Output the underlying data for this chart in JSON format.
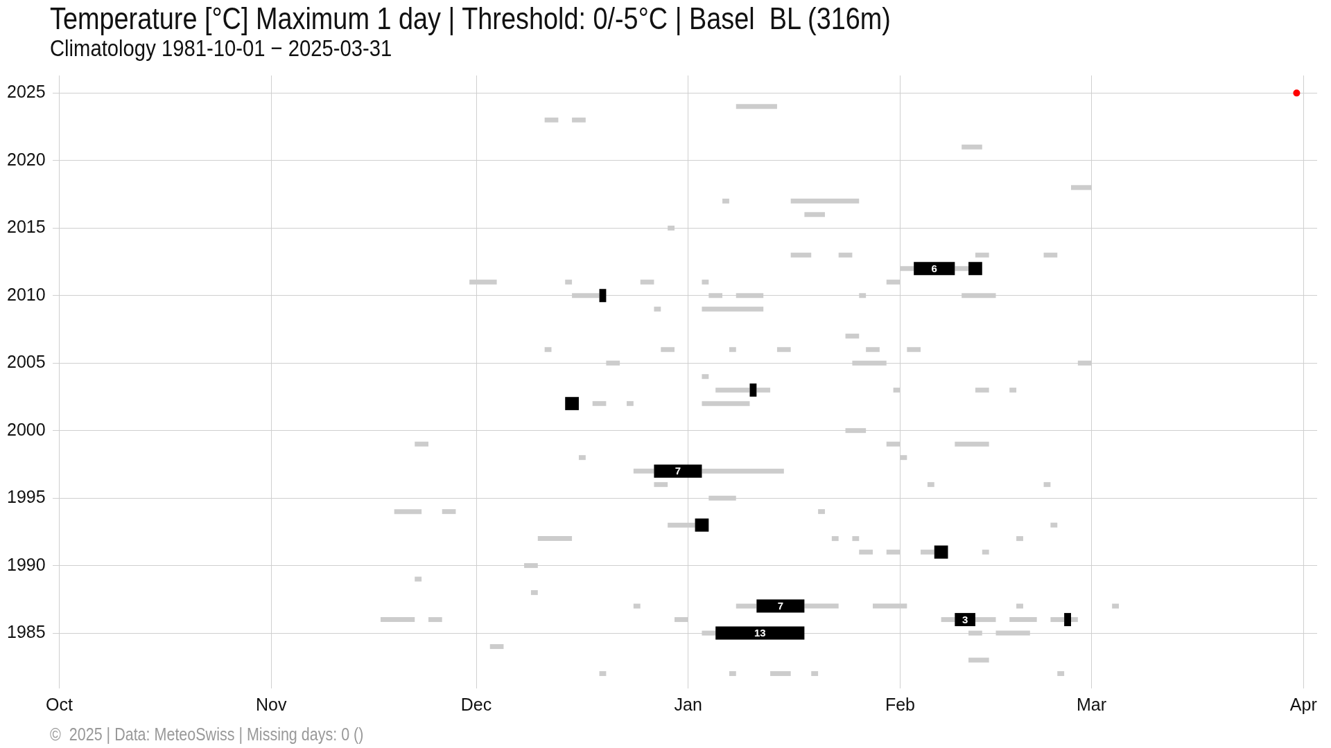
{
  "chart_data": {
    "type": "line",
    "title": "Temperature [°C] Maximum 1 day | Threshold: 0/-5°C | Basel  BL (316m)",
    "subtitle": "Climatology 1981-10-01 − 2025-03-31",
    "xlim": [
      "2000-09-30",
      "2001-04-03"
    ],
    "ylim": [
      1980.9,
      2026.3
    ],
    "xticks": [
      {
        "value": "2000-10-01",
        "label": "Oct"
      },
      {
        "value": "2000-11-01",
        "label": "Nov"
      },
      {
        "value": "2000-12-01",
        "label": "Dec"
      },
      {
        "value": "2001-01-01",
        "label": "Jan"
      },
      {
        "value": "2001-02-01",
        "label": "Feb"
      },
      {
        "value": "2001-03-01",
        "label": "Mar"
      },
      {
        "value": "2001-04-01",
        "label": "Apr"
      }
    ],
    "yticks": [
      1985,
      1990,
      1995,
      2000,
      2005,
      2010,
      2015,
      2020,
      2025
    ],
    "grid": true,
    "legend": false,
    "marker": "none",
    "annotations": [
      "©  2025 | Data: MeteoSwiss | Missing days: 0 ()",
      {
        "text": "6",
        "x": "2001-02-06T00:00",
        "y": 2012
      },
      {
        "text": "7",
        "x": "2000-12-30T12:00",
        "y": 1997
      },
      {
        "text": "7",
        "x": "2001-01-14T12:00",
        "y": 1987
      },
      {
        "text": "13",
        "x": "2001-01-11T12:00",
        "y": 1985
      },
      {
        "text": "3",
        "x": "2001-02-10T12:00",
        "y": 1986
      }
    ],
    "series": [
      {
        "color": "#cccccc",
        "x": [
          "2001-01-08",
          "2001-01-14"
        ],
        "values": [
          2024,
          2024
        ]
      },
      {
        "color": "#cccccc",
        "x": [
          "2000-12-11",
          "2000-12-13"
        ],
        "values": [
          2023,
          2023
        ]
      },
      {
        "color": "#cccccc",
        "x": [
          "2000-12-15",
          "2000-12-17"
        ],
        "values": [
          2023,
          2023
        ]
      },
      {
        "color": "#cccccc",
        "x": [
          "2001-02-10",
          "2001-02-13"
        ],
        "values": [
          2021,
          2021
        ]
      },
      {
        "color": "#cccccc",
        "x": [
          "2001-02-26",
          "2001-03-01"
        ],
        "values": [
          2018,
          2018
        ]
      },
      {
        "color": "#cccccc",
        "x": [
          "2001-01-06",
          "2001-01-07"
        ],
        "values": [
          2017,
          2017
        ]
      },
      {
        "color": "#cccccc",
        "x": [
          "2001-01-16",
          "2001-01-26"
        ],
        "values": [
          2017,
          2017
        ]
      },
      {
        "color": "#cccccc",
        "x": [
          "2001-01-18",
          "2001-01-21"
        ],
        "values": [
          2016,
          2016
        ]
      },
      {
        "color": "#cccccc",
        "x": [
          "2000-12-29",
          "2000-12-30"
        ],
        "values": [
          2015,
          2015
        ]
      },
      {
        "color": "#cccccc",
        "x": [
          "2001-01-16",
          "2001-01-19"
        ],
        "values": [
          2013,
          2013
        ]
      },
      {
        "color": "#cccccc",
        "x": [
          "2001-01-23",
          "2001-01-25"
        ],
        "values": [
          2013,
          2013
        ]
      },
      {
        "color": "#cccccc",
        "x": [
          "2001-02-12",
          "2001-02-14"
        ],
        "values": [
          2013,
          2013
        ]
      },
      {
        "color": "#cccccc",
        "x": [
          "2001-02-22",
          "2001-02-24"
        ],
        "values": [
          2013,
          2013
        ]
      },
      {
        "color": "#cccccc",
        "x": [
          "2001-02-01",
          "2001-02-03"
        ],
        "values": [
          2012,
          2012
        ]
      },
      {
        "color": "#cccccc",
        "x": [
          "2001-02-09",
          "2001-02-11"
        ],
        "values": [
          2012,
          2012
        ]
      },
      {
        "color": "#cccccc",
        "x": [
          "2000-11-30",
          "2000-12-04"
        ],
        "values": [
          2011,
          2011
        ]
      },
      {
        "color": "#cccccc",
        "x": [
          "2000-12-14",
          "2000-12-15"
        ],
        "values": [
          2011,
          2011
        ]
      },
      {
        "color": "#cccccc",
        "x": [
          "2000-12-25",
          "2000-12-27"
        ],
        "values": [
          2011,
          2011
        ]
      },
      {
        "color": "#cccccc",
        "x": [
          "2001-01-03",
          "2001-01-04"
        ],
        "values": [
          2011,
          2011
        ]
      },
      {
        "color": "#cccccc",
        "x": [
          "2001-01-30",
          "2001-02-01"
        ],
        "values": [
          2011,
          2011
        ]
      },
      {
        "color": "#cccccc",
        "x": [
          "2000-12-15",
          "2000-12-19"
        ],
        "values": [
          2010,
          2010
        ]
      },
      {
        "color": "#cccccc",
        "x": [
          "2001-01-04",
          "2001-01-06"
        ],
        "values": [
          2010,
          2010
        ]
      },
      {
        "color": "#cccccc",
        "x": [
          "2001-01-08",
          "2001-01-12"
        ],
        "values": [
          2010,
          2010
        ]
      },
      {
        "color": "#cccccc",
        "x": [
          "2001-01-26",
          "2001-01-27"
        ],
        "values": [
          2010,
          2010
        ]
      },
      {
        "color": "#cccccc",
        "x": [
          "2001-02-10",
          "2001-02-15"
        ],
        "values": [
          2010,
          2010
        ]
      },
      {
        "color": "#cccccc",
        "x": [
          "2000-12-27",
          "2000-12-28"
        ],
        "values": [
          2009,
          2009
        ]
      },
      {
        "color": "#cccccc",
        "x": [
          "2001-01-03",
          "2001-01-12"
        ],
        "values": [
          2009,
          2009
        ]
      },
      {
        "color": "#cccccc",
        "x": [
          "2001-01-24",
          "2001-01-26"
        ],
        "values": [
          2007,
          2007
        ]
      },
      {
        "color": "#cccccc",
        "x": [
          "2000-12-11",
          "2000-12-12"
        ],
        "values": [
          2006,
          2006
        ]
      },
      {
        "color": "#cccccc",
        "x": [
          "2000-12-28",
          "2000-12-30"
        ],
        "values": [
          2006,
          2006
        ]
      },
      {
        "color": "#cccccc",
        "x": [
          "2001-01-07",
          "2001-01-08"
        ],
        "values": [
          2006,
          2006
        ]
      },
      {
        "color": "#cccccc",
        "x": [
          "2001-01-14",
          "2001-01-16"
        ],
        "values": [
          2006,
          2006
        ]
      },
      {
        "color": "#cccccc",
        "x": [
          "2001-01-27",
          "2001-01-29"
        ],
        "values": [
          2006,
          2006
        ]
      },
      {
        "color": "#cccccc",
        "x": [
          "2001-02-02",
          "2001-02-04"
        ],
        "values": [
          2006,
          2006
        ]
      },
      {
        "color": "#cccccc",
        "x": [
          "2000-12-20",
          "2000-12-22"
        ],
        "values": [
          2005,
          2005
        ]
      },
      {
        "color": "#cccccc",
        "x": [
          "2001-01-25",
          "2001-01-30"
        ],
        "values": [
          2005,
          2005
        ]
      },
      {
        "color": "#cccccc",
        "x": [
          "2001-02-27",
          "2001-03-01"
        ],
        "values": [
          2005,
          2005
        ]
      },
      {
        "color": "#cccccc",
        "x": [
          "2001-01-03",
          "2001-01-04"
        ],
        "values": [
          2004,
          2004
        ]
      },
      {
        "color": "#cccccc",
        "x": [
          "2001-01-05",
          "2001-01-10"
        ],
        "values": [
          2003,
          2003
        ]
      },
      {
        "color": "#cccccc",
        "x": [
          "2001-01-11",
          "2001-01-13"
        ],
        "values": [
          2003,
          2003
        ]
      },
      {
        "color": "#cccccc",
        "x": [
          "2001-01-31",
          "2001-02-01"
        ],
        "values": [
          2003,
          2003
        ]
      },
      {
        "color": "#cccccc",
        "x": [
          "2001-02-12",
          "2001-02-14"
        ],
        "values": [
          2003,
          2003
        ]
      },
      {
        "color": "#cccccc",
        "x": [
          "2001-02-17",
          "2001-02-18"
        ],
        "values": [
          2003,
          2003
        ]
      },
      {
        "color": "#cccccc",
        "x": [
          "2000-12-18",
          "2000-12-20"
        ],
        "values": [
          2002,
          2002
        ]
      },
      {
        "color": "#cccccc",
        "x": [
          "2000-12-23",
          "2000-12-24"
        ],
        "values": [
          2002,
          2002
        ]
      },
      {
        "color": "#cccccc",
        "x": [
          "2001-01-03",
          "2001-01-10"
        ],
        "values": [
          2002,
          2002
        ]
      },
      {
        "color": "#cccccc",
        "x": [
          "2001-01-24",
          "2001-01-27"
        ],
        "values": [
          2000,
          2000
        ]
      },
      {
        "color": "#cccccc",
        "x": [
          "2000-11-22",
          "2000-11-24"
        ],
        "values": [
          1999,
          1999
        ]
      },
      {
        "color": "#cccccc",
        "x": [
          "2001-01-30",
          "2001-02-01"
        ],
        "values": [
          1999,
          1999
        ]
      },
      {
        "color": "#cccccc",
        "x": [
          "2001-02-09",
          "2001-02-14"
        ],
        "values": [
          1999,
          1999
        ]
      },
      {
        "color": "#cccccc",
        "x": [
          "2000-12-16",
          "2000-12-17"
        ],
        "values": [
          1998,
          1998
        ]
      },
      {
        "color": "#cccccc",
        "x": [
          "2001-02-01",
          "2001-02-02"
        ],
        "values": [
          1998,
          1998
        ]
      },
      {
        "color": "#cccccc",
        "x": [
          "2000-12-24",
          "2000-12-27"
        ],
        "values": [
          1997,
          1997
        ]
      },
      {
        "color": "#cccccc",
        "x": [
          "2001-01-03",
          "2001-01-15"
        ],
        "values": [
          1997,
          1997
        ]
      },
      {
        "color": "#cccccc",
        "x": [
          "2000-12-27",
          "2000-12-29"
        ],
        "values": [
          1996,
          1996
        ]
      },
      {
        "color": "#cccccc",
        "x": [
          "2001-02-05",
          "2001-02-06"
        ],
        "values": [
          1996,
          1996
        ]
      },
      {
        "color": "#cccccc",
        "x": [
          "2001-02-22",
          "2001-02-23"
        ],
        "values": [
          1996,
          1996
        ]
      },
      {
        "color": "#cccccc",
        "x": [
          "2001-01-04",
          "2001-01-08"
        ],
        "values": [
          1995,
          1995
        ]
      },
      {
        "color": "#cccccc",
        "x": [
          "2000-11-19",
          "2000-11-23"
        ],
        "values": [
          1994,
          1994
        ]
      },
      {
        "color": "#cccccc",
        "x": [
          "2000-11-26",
          "2000-11-28"
        ],
        "values": [
          1994,
          1994
        ]
      },
      {
        "color": "#cccccc",
        "x": [
          "2001-01-20",
          "2001-01-21"
        ],
        "values": [
          1994,
          1994
        ]
      },
      {
        "color": "#cccccc",
        "x": [
          "2000-12-29",
          "2001-01-02"
        ],
        "values": [
          1993,
          1993
        ]
      },
      {
        "color": "#cccccc",
        "x": [
          "2001-02-23",
          "2001-02-24"
        ],
        "values": [
          1993,
          1993
        ]
      },
      {
        "color": "#cccccc",
        "x": [
          "2000-12-10",
          "2000-12-15"
        ],
        "values": [
          1992,
          1992
        ]
      },
      {
        "color": "#cccccc",
        "x": [
          "2001-01-22",
          "2001-01-23"
        ],
        "values": [
          1992,
          1992
        ]
      },
      {
        "color": "#cccccc",
        "x": [
          "2001-01-25",
          "2001-01-26"
        ],
        "values": [
          1992,
          1992
        ]
      },
      {
        "color": "#cccccc",
        "x": [
          "2001-02-18",
          "2001-02-19"
        ],
        "values": [
          1992,
          1992
        ]
      },
      {
        "color": "#cccccc",
        "x": [
          "2001-01-26",
          "2001-01-28"
        ],
        "values": [
          1991,
          1991
        ]
      },
      {
        "color": "#cccccc",
        "x": [
          "2001-01-30",
          "2001-02-01"
        ],
        "values": [
          1991,
          1991
        ]
      },
      {
        "color": "#cccccc",
        "x": [
          "2001-02-04",
          "2001-02-06"
        ],
        "values": [
          1991,
          1991
        ]
      },
      {
        "color": "#cccccc",
        "x": [
          "2001-02-13",
          "2001-02-14"
        ],
        "values": [
          1991,
          1991
        ]
      },
      {
        "color": "#cccccc",
        "x": [
          "2000-12-08",
          "2000-12-10"
        ],
        "values": [
          1990,
          1990
        ]
      },
      {
        "color": "#cccccc",
        "x": [
          "2000-11-22",
          "2000-11-23"
        ],
        "values": [
          1989,
          1989
        ]
      },
      {
        "color": "#cccccc",
        "x": [
          "2000-12-09",
          "2000-12-10"
        ],
        "values": [
          1988,
          1988
        ]
      },
      {
        "color": "#cccccc",
        "x": [
          "2000-12-24",
          "2000-12-25"
        ],
        "values": [
          1987,
          1987
        ]
      },
      {
        "color": "#cccccc",
        "x": [
          "2001-01-08",
          "2001-01-11"
        ],
        "values": [
          1987,
          1987
        ]
      },
      {
        "color": "#cccccc",
        "x": [
          "2001-01-18",
          "2001-01-23"
        ],
        "values": [
          1987,
          1987
        ]
      },
      {
        "color": "#cccccc",
        "x": [
          "2001-01-28",
          "2001-02-02"
        ],
        "values": [
          1987,
          1987
        ]
      },
      {
        "color": "#cccccc",
        "x": [
          "2001-02-18",
          "2001-02-19"
        ],
        "values": [
          1987,
          1987
        ]
      },
      {
        "color": "#cccccc",
        "x": [
          "2001-03-04",
          "2001-03-05"
        ],
        "values": [
          1987,
          1987
        ]
      },
      {
        "color": "#cccccc",
        "x": [
          "2000-11-17",
          "2000-11-22"
        ],
        "values": [
          1986,
          1986
        ]
      },
      {
        "color": "#cccccc",
        "x": [
          "2000-11-24",
          "2000-11-26"
        ],
        "values": [
          1986,
          1986
        ]
      },
      {
        "color": "#cccccc",
        "x": [
          "2000-12-30",
          "2001-01-01"
        ],
        "values": [
          1986,
          1986
        ]
      },
      {
        "color": "#cccccc",
        "x": [
          "2001-02-07",
          "2001-02-09"
        ],
        "values": [
          1986,
          1986
        ]
      },
      {
        "color": "#cccccc",
        "x": [
          "2001-02-12",
          "2001-02-15"
        ],
        "values": [
          1986,
          1986
        ]
      },
      {
        "color": "#cccccc",
        "x": [
          "2001-02-17",
          "2001-02-21"
        ],
        "values": [
          1986,
          1986
        ]
      },
      {
        "color": "#cccccc",
        "x": [
          "2001-02-23",
          "2001-02-25"
        ],
        "values": [
          1986,
          1986
        ]
      },
      {
        "color": "#cccccc",
        "x": [
          "2001-02-26",
          "2001-02-27"
        ],
        "values": [
          1986,
          1986
        ]
      },
      {
        "color": "#cccccc",
        "x": [
          "2001-01-03",
          "2001-01-05"
        ],
        "values": [
          1985,
          1985
        ]
      },
      {
        "color": "#cccccc",
        "x": [
          "2001-02-11",
          "2001-02-13"
        ],
        "values": [
          1985,
          1985
        ]
      },
      {
        "color": "#cccccc",
        "x": [
          "2001-02-15",
          "2001-02-20"
        ],
        "values": [
          1985,
          1985
        ]
      },
      {
        "color": "#cccccc",
        "x": [
          "2000-12-03",
          "2000-12-05"
        ],
        "values": [
          1984,
          1984
        ]
      },
      {
        "color": "#cccccc",
        "x": [
          "2001-02-11",
          "2001-02-14"
        ],
        "values": [
          1983,
          1983
        ]
      },
      {
        "color": "#cccccc",
        "x": [
          "2000-12-19",
          "2000-12-20"
        ],
        "values": [
          1982,
          1982
        ]
      },
      {
        "color": "#cccccc",
        "x": [
          "2001-01-07",
          "2001-01-08"
        ],
        "values": [
          1982,
          1982
        ]
      },
      {
        "color": "#cccccc",
        "x": [
          "2001-01-13",
          "2001-01-16"
        ],
        "values": [
          1982,
          1982
        ]
      },
      {
        "color": "#cccccc",
        "x": [
          "2001-01-19",
          "2001-01-20"
        ],
        "values": [
          1982,
          1982
        ]
      },
      {
        "color": "#cccccc",
        "x": [
          "2001-02-24",
          "2001-02-25"
        ],
        "values": [
          1982,
          1982
        ]
      },
      {
        "color": "#000000",
        "x": [
          "2001-02-03",
          "2001-02-06T00:00",
          "2001-02-09"
        ],
        "values": [
          2012,
          2012,
          2012
        ]
      },
      {
        "color": "#000000",
        "x": [
          "2001-02-11",
          "2001-02-13"
        ],
        "values": [
          2012,
          2012
        ]
      },
      {
        "color": "#000000",
        "x": [
          "2000-12-19",
          "2000-12-20"
        ],
        "values": [
          2010,
          2010
        ]
      },
      {
        "color": "#000000",
        "x": [
          "2001-01-10",
          "2001-01-11"
        ],
        "values": [
          2003,
          2003
        ]
      },
      {
        "color": "#000000",
        "x": [
          "2000-12-14",
          "2000-12-16"
        ],
        "values": [
          2002,
          2002
        ]
      },
      {
        "color": "#000000",
        "x": [
          "2000-12-27",
          "2000-12-30T12:00",
          "2001-01-03"
        ],
        "values": [
          1997,
          1997,
          1997
        ]
      },
      {
        "color": "#000000",
        "x": [
          "2001-01-02",
          "2001-01-04"
        ],
        "values": [
          1993,
          1993
        ]
      },
      {
        "color": "#000000",
        "x": [
          "2001-02-06",
          "2001-02-08"
        ],
        "values": [
          1991,
          1991
        ]
      },
      {
        "color": "#000000",
        "x": [
          "2001-01-11",
          "2001-01-14T12:00",
          "2001-01-18"
        ],
        "values": [
          1987,
          1987,
          1987
        ]
      },
      {
        "color": "#000000",
        "x": [
          "2001-02-09",
          "2001-02-10T12:00",
          "2001-02-12"
        ],
        "values": [
          1986,
          1986,
          1986
        ]
      },
      {
        "color": "#000000",
        "x": [
          "2001-02-25",
          "2001-02-26"
        ],
        "values": [
          1986,
          1986
        ]
      },
      {
        "color": "#000000",
        "x": [
          "2001-01-05",
          "2001-01-11T12:00",
          "2001-01-18"
        ],
        "values": [
          1985,
          1985,
          1985
        ]
      },
      {
        "type": "scatter",
        "marker": "circle",
        "color": "#ff0000",
        "x": [
          "2001-03-31"
        ],
        "values": [
          2025
        ]
      }
    ]
  }
}
